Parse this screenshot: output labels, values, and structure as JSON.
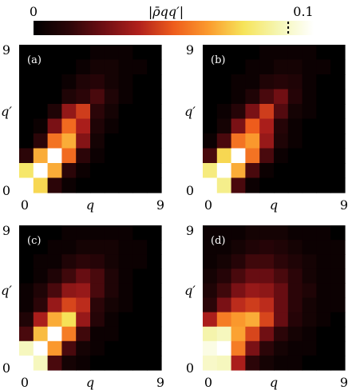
{
  "colorbar": {
    "label": "|ρ̄qq′|",
    "min_label": "0",
    "max_label": "0.1",
    "vmin": 0,
    "vmax": 0.11,
    "marker_value": 0.1,
    "colormap": "afmhot-like",
    "stops": [
      "#000000",
      "#2a0508",
      "#6e0e13",
      "#b0201c",
      "#ee5c1c",
      "#fb9b2e",
      "#f6e45a",
      "#f5f6b4",
      "#ffffff"
    ]
  },
  "chart_data": [
    {
      "type": "heatmap",
      "title": "(a)",
      "xlabel": "q",
      "ylabel": "q′",
      "x_ticks": [
        "0",
        "9"
      ],
      "y_ticks": [
        "0",
        "9"
      ],
      "xlim": [
        0,
        9
      ],
      "ylim": [
        0,
        9
      ],
      "rows_top_to_bottom": [
        [
          0.0,
          0.0,
          0.0,
          0.0,
          0.0,
          0.004,
          0.004,
          0.004,
          0.0,
          0.0
        ],
        [
          0.0,
          0.0,
          0.0,
          0.0,
          0.004,
          0.007,
          0.007,
          0.004,
          0.004,
          0.0
        ],
        [
          0.0,
          0.0,
          0.0,
          0.004,
          0.01,
          0.012,
          0.007,
          0.004,
          0.0,
          0.0
        ],
        [
          0.0,
          0.0,
          0.0,
          0.01,
          0.014,
          0.02,
          0.01,
          0.004,
          0.0,
          0.0
        ],
        [
          0.0,
          0.0,
          0.01,
          0.035,
          0.048,
          0.014,
          0.007,
          0.0,
          0.0,
          0.0
        ],
        [
          0.0,
          0.004,
          0.03,
          0.058,
          0.04,
          0.01,
          0.004,
          0.0,
          0.0,
          0.0
        ],
        [
          0.0,
          0.014,
          0.06,
          0.072,
          0.032,
          0.007,
          0.0,
          0.0,
          0.0,
          0.0
        ],
        [
          0.014,
          0.072,
          0.11,
          0.058,
          0.014,
          0.004,
          0.0,
          0.0,
          0.0,
          0.0
        ],
        [
          0.085,
          0.11,
          0.072,
          0.014,
          0.004,
          0.0,
          0.0,
          0.0,
          0.0,
          0.0
        ],
        [
          0.11,
          0.08,
          0.014,
          0.004,
          0.0,
          0.0,
          0.0,
          0.0,
          0.0,
          0.0
        ]
      ]
    },
    {
      "type": "heatmap",
      "title": "(b)",
      "xlabel": "q",
      "ylabel": "q′",
      "x_ticks": [
        "0",
        "9"
      ],
      "y_ticks": [
        "0",
        "9"
      ],
      "xlim": [
        0,
        9
      ],
      "ylim": [
        0,
        9
      ],
      "rows_top_to_bottom": [
        [
          0.0,
          0.0,
          0.0,
          0.0,
          0.004,
          0.004,
          0.004,
          0.004,
          0.0,
          0.0
        ],
        [
          0.0,
          0.0,
          0.0,
          0.004,
          0.004,
          0.007,
          0.007,
          0.004,
          0.004,
          0.0
        ],
        [
          0.0,
          0.0,
          0.004,
          0.004,
          0.01,
          0.012,
          0.01,
          0.004,
          0.0,
          0.0
        ],
        [
          0.0,
          0.0,
          0.004,
          0.01,
          0.02,
          0.028,
          0.012,
          0.004,
          0.0,
          0.0
        ],
        [
          0.0,
          0.004,
          0.012,
          0.03,
          0.048,
          0.022,
          0.007,
          0.004,
          0.0,
          0.0
        ],
        [
          0.0,
          0.007,
          0.03,
          0.055,
          0.04,
          0.012,
          0.004,
          0.0,
          0.0,
          0.0
        ],
        [
          0.004,
          0.02,
          0.06,
          0.068,
          0.036,
          0.01,
          0.004,
          0.0,
          0.0,
          0.0
        ],
        [
          0.02,
          0.08,
          0.11,
          0.06,
          0.02,
          0.004,
          0.0,
          0.0,
          0.0,
          0.0
        ],
        [
          0.088,
          0.11,
          0.072,
          0.02,
          0.004,
          0.0,
          0.0,
          0.0,
          0.0,
          0.0
        ],
        [
          0.11,
          0.09,
          0.02,
          0.004,
          0.0,
          0.0,
          0.0,
          0.0,
          0.0,
          0.0
        ]
      ]
    },
    {
      "type": "heatmap",
      "title": "(c)",
      "xlabel": "q",
      "ylabel": "q′",
      "x_ticks": [
        "0",
        "9"
      ],
      "y_ticks": [
        "0",
        "9"
      ],
      "xlim": [
        0,
        9
      ],
      "ylim": [
        0,
        9
      ],
      "rows_top_to_bottom": [
        [
          0.0,
          0.0,
          0.0,
          0.004,
          0.004,
          0.004,
          0.004,
          0.004,
          0.0,
          0.0
        ],
        [
          0.0,
          0.0,
          0.004,
          0.004,
          0.007,
          0.007,
          0.007,
          0.004,
          0.004,
          0.0
        ],
        [
          0.0,
          0.004,
          0.004,
          0.01,
          0.014,
          0.012,
          0.007,
          0.004,
          0.004,
          0.0
        ],
        [
          0.0,
          0.004,
          0.01,
          0.018,
          0.026,
          0.02,
          0.01,
          0.004,
          0.0,
          0.0
        ],
        [
          0.004,
          0.01,
          0.02,
          0.034,
          0.036,
          0.02,
          0.01,
          0.004,
          0.0,
          0.0
        ],
        [
          0.004,
          0.014,
          0.036,
          0.05,
          0.044,
          0.014,
          0.007,
          0.004,
          0.0,
          0.0
        ],
        [
          0.01,
          0.04,
          0.072,
          0.082,
          0.036,
          0.012,
          0.004,
          0.0,
          0.0,
          0.0
        ],
        [
          0.02,
          0.075,
          0.11,
          0.062,
          0.018,
          0.004,
          0.004,
          0.0,
          0.0,
          0.0
        ],
        [
          0.098,
          0.11,
          0.068,
          0.02,
          0.007,
          0.004,
          0.0,
          0.0,
          0.0,
          0.0
        ],
        [
          0.11,
          0.098,
          0.02,
          0.007,
          0.004,
          0.0,
          0.0,
          0.0,
          0.0,
          0.0
        ]
      ]
    },
    {
      "type": "heatmap",
      "title": "(d)",
      "xlabel": "q",
      "ylabel": "q′",
      "x_ticks": [
        "0",
        "9"
      ],
      "y_ticks": [
        "0",
        "9"
      ],
      "xlim": [
        0,
        9
      ],
      "ylim": [
        0,
        9
      ],
      "rows_top_to_bottom": [
        [
          0.004,
          0.004,
          0.004,
          0.007,
          0.007,
          0.007,
          0.004,
          0.004,
          0.004,
          0.0
        ],
        [
          0.004,
          0.004,
          0.007,
          0.01,
          0.012,
          0.01,
          0.007,
          0.004,
          0.004,
          0.004
        ],
        [
          0.004,
          0.007,
          0.012,
          0.018,
          0.018,
          0.014,
          0.01,
          0.007,
          0.004,
          0.004
        ],
        [
          0.007,
          0.012,
          0.02,
          0.026,
          0.026,
          0.02,
          0.014,
          0.007,
          0.004,
          0.004
        ],
        [
          0.01,
          0.018,
          0.03,
          0.036,
          0.034,
          0.026,
          0.014,
          0.01,
          0.004,
          0.004
        ],
        [
          0.014,
          0.03,
          0.044,
          0.048,
          0.044,
          0.026,
          0.014,
          0.007,
          0.004,
          0.004
        ],
        [
          0.04,
          0.062,
          0.068,
          0.072,
          0.05,
          0.026,
          0.012,
          0.007,
          0.004,
          0.0
        ],
        [
          0.095,
          0.098,
          0.07,
          0.05,
          0.028,
          0.014,
          0.007,
          0.004,
          0.0,
          0.0
        ],
        [
          0.105,
          0.11,
          0.062,
          0.03,
          0.014,
          0.007,
          0.004,
          0.004,
          0.0,
          0.0
        ],
        [
          0.1,
          0.098,
          0.04,
          0.014,
          0.007,
          0.004,
          0.004,
          0.0,
          0.0,
          0.0
        ]
      ]
    }
  ]
}
